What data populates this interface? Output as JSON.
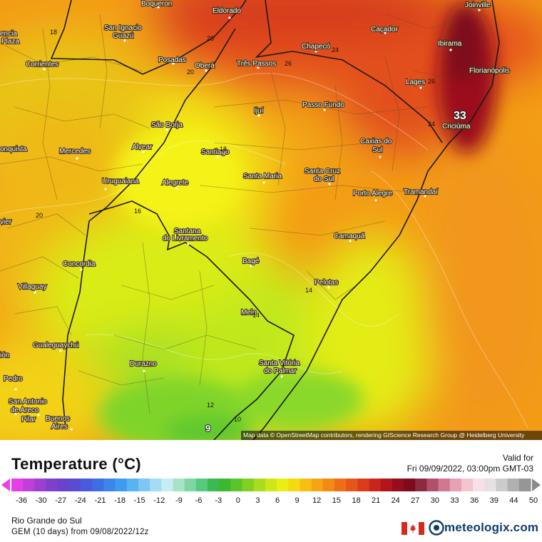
{
  "legend": {
    "title": "Temperature (°C)",
    "valid_label": "Valid for",
    "valid_time": "Fri 09/09/2022, 03:00pm GMT-03",
    "ticks": [
      "-36",
      "-30",
      "-27",
      "-24",
      "-21",
      "-18",
      "-15",
      "-12",
      "-9",
      "-6",
      "-3",
      "0",
      "3",
      "6",
      "9",
      "12",
      "15",
      "18",
      "21",
      "24",
      "27",
      "30",
      "33",
      "36",
      "39",
      "44",
      "50"
    ]
  },
  "footer": {
    "region": "Rio Grande do Sul",
    "model": "GEM (10 days) from 09/08/2022/12z",
    "brand": "meteologix.com"
  },
  "map": {
    "attribution": "Map data © OpenStreetMap contributors, rendering GIScience Research Group @ Heidelberg University",
    "cities": [
      {
        "id": "boqueron",
        "name": "Boqueron"
      },
      {
        "id": "eldorado",
        "name": "Eldorado"
      },
      {
        "id": "joinville",
        "name": "Joinville"
      },
      {
        "id": "encia",
        "name": "encia"
      },
      {
        "id": "plaza",
        "name": "Plaza"
      },
      {
        "id": "san-ignacio",
        "name": "San Ignacio"
      },
      {
        "id": "guazu",
        "name": "Guazú"
      },
      {
        "id": "cacador",
        "name": "Caçador"
      },
      {
        "id": "chapeco",
        "name": "Chapecó"
      },
      {
        "id": "ibirama",
        "name": "Ibirama"
      },
      {
        "id": "corrientes",
        "name": "Corrientes"
      },
      {
        "id": "posadas",
        "name": "Posadas"
      },
      {
        "id": "obera",
        "name": "Oberá"
      },
      {
        "id": "tres-passos",
        "name": "Três Passos"
      },
      {
        "id": "florianopolis",
        "name": "Florianópolis"
      },
      {
        "id": "lages",
        "name": "Lages"
      },
      {
        "id": "passo-fundo",
        "name": "Passo Fundo"
      },
      {
        "id": "ijui",
        "name": "Ijuí"
      },
      {
        "id": "sao-borja",
        "name": "São Borja"
      },
      {
        "id": "criciuma",
        "name": "Criciúma"
      },
      {
        "id": "onquista",
        "name": "onquista"
      },
      {
        "id": "mercedes",
        "name": "Mercedes"
      },
      {
        "id": "alvear",
        "name": "Alvear"
      },
      {
        "id": "santiago",
        "name": "Santiago"
      },
      {
        "id": "caxias",
        "name": "Caxias do"
      },
      {
        "id": "caxias-sul",
        "name": "Sul"
      },
      {
        "id": "santa-maria",
        "name": "Santa Maria"
      },
      {
        "id": "santa-cruz",
        "name": "Santa Cruz"
      },
      {
        "id": "santa-cruz-sul",
        "name": "do Sul"
      },
      {
        "id": "uruguaiana",
        "name": "Uruguaiana"
      },
      {
        "id": "alegrete",
        "name": "Alegrete"
      },
      {
        "id": "porto-alegre",
        "name": "Porto Alegre"
      },
      {
        "id": "tramandai",
        "name": "Tramandaí"
      },
      {
        "id": "vier",
        "name": "vier"
      },
      {
        "id": "santana",
        "name": "Santana"
      },
      {
        "id": "livramento",
        "name": "do Livramento"
      },
      {
        "id": "camaqua",
        "name": "Camaquã"
      },
      {
        "id": "concordia",
        "name": "Concordia"
      },
      {
        "id": "bage",
        "name": "Bagé"
      },
      {
        "id": "pelotas",
        "name": "Pelotas"
      },
      {
        "id": "villaguay",
        "name": "Villaguay"
      },
      {
        "id": "melo",
        "name": "Melo"
      },
      {
        "id": "gualeguaychu",
        "name": "Gualeguaychú"
      },
      {
        "id": "ion",
        "name": "ión"
      },
      {
        "id": "durazno",
        "name": "Durazno"
      },
      {
        "id": "santa-vitoria",
        "name": "Santa Vitória"
      },
      {
        "id": "palmar",
        "name": "do Palmar"
      },
      {
        "id": "pedro",
        "name": "Pedro"
      },
      {
        "id": "san-antonio",
        "name": "San Antonio"
      },
      {
        "id": "areco",
        "name": "de Areco"
      },
      {
        "id": "pilar",
        "name": "Pilar"
      },
      {
        "id": "buenos-aires",
        "name": "Buenos"
      },
      {
        "id": "aires",
        "name": "Aires"
      }
    ],
    "isotherms": [
      {
        "id": "i18a",
        "value": "18"
      },
      {
        "id": "i28",
        "value": "28"
      },
      {
        "id": "i24a",
        "value": "24"
      },
      {
        "id": "i20a",
        "value": "20"
      },
      {
        "id": "i26a",
        "value": "26"
      },
      {
        "id": "i26b",
        "value": "26"
      },
      {
        "id": "i33",
        "value": "33"
      },
      {
        "id": "i24b",
        "value": "24"
      },
      {
        "id": "i18b",
        "value": "18"
      },
      {
        "id": "i16",
        "value": "16"
      },
      {
        "id": "i20b",
        "value": "20"
      },
      {
        "id": "i14a",
        "value": "14"
      },
      {
        "id": "i14b",
        "value": "14"
      },
      {
        "id": "i12",
        "value": "12"
      },
      {
        "id": "i10",
        "value": "10"
      },
      {
        "id": "i9",
        "value": "9"
      }
    ]
  },
  "colors": {
    "hot": "#9c0f1c",
    "warm": "#e0461a",
    "orange": "#f39016",
    "yellow": "#f2ed13",
    "lime": "#c9ea19",
    "green": "#6ccf2b"
  }
}
